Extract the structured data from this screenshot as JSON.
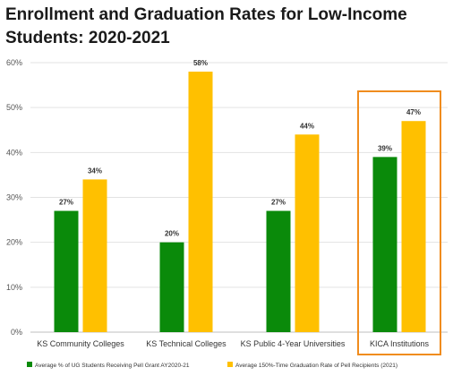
{
  "chart_data": {
    "type": "bar",
    "title_lines": [
      "Enrollment and Graduation Rates for Low-Income",
      "Students: 2020-2021"
    ],
    "categories": [
      "KS Community Colleges",
      "KS Technical Colleges",
      "KS Public 4-Year Universities",
      "KICA Institutions"
    ],
    "series": [
      {
        "name": "Average % of UG Students Receiving Pell Grant AY2020-21",
        "color": "#0a8a0a",
        "values": [
          27,
          20,
          27,
          39
        ],
        "labels": [
          "27%",
          "20%",
          "27%",
          "39%"
        ]
      },
      {
        "name": "Average 150%-Time Graduation Rate of Pell Recipients (2021)",
        "color": "#ffc000",
        "values": [
          34,
          58,
          44,
          47
        ],
        "labels": [
          "34%",
          "58%",
          "44%",
          "47%"
        ]
      }
    ],
    "ylim": [
      0,
      60
    ],
    "yticks": [
      0,
      10,
      20,
      30,
      40,
      50,
      60
    ],
    "ytick_labels": [
      "0%",
      "10%",
      "20%",
      "30%",
      "40%",
      "50%",
      "60%"
    ],
    "grid": true,
    "legend_position": "bottom",
    "highlight_category": "KICA Institutions",
    "highlight_color": "#f08c1e",
    "grid_color": "#e3e3e3"
  }
}
